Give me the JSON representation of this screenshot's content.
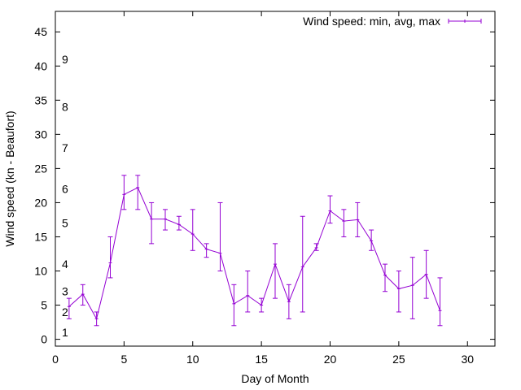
{
  "chart_data": {
    "type": "line",
    "xlabel": "Day of Month",
    "ylabel": "Wind speed (kn - Beaufort)",
    "xlim": [
      0,
      32
    ],
    "ylim": [
      -1,
      48
    ],
    "x_ticks": [
      0,
      5,
      10,
      15,
      20,
      25,
      30
    ],
    "y_ticks": [
      0,
      5,
      10,
      15,
      20,
      25,
      30,
      35,
      40,
      45
    ],
    "grid": false,
    "legend_position": "top-right",
    "colors": {
      "series": "#9400d3",
      "axis": "#000000"
    },
    "beaufort_labels": [
      {
        "label": "1",
        "knots": 1
      },
      {
        "label": "2",
        "knots": 4
      },
      {
        "label": "3",
        "knots": 7
      },
      {
        "label": "4",
        "knots": 11
      },
      {
        "label": "5",
        "knots": 17
      },
      {
        "label": "6",
        "knots": 22
      },
      {
        "label": "7",
        "knots": 28
      },
      {
        "label": "8",
        "knots": 34
      },
      {
        "label": "9",
        "knots": 41
      }
    ],
    "series": [
      {
        "name": "Wind speed: min, avg, max",
        "x": [
          1,
          2,
          3,
          4,
          5,
          6,
          7,
          8,
          9,
          10,
          11,
          12,
          13,
          14,
          15,
          16,
          17,
          18,
          19,
          20,
          21,
          22,
          23,
          24,
          25,
          26,
          27,
          28
        ],
        "avg": [
          4.8,
          6.6,
          3.0,
          11.2,
          21.2,
          22.2,
          17.6,
          17.6,
          16.8,
          15.4,
          13.2,
          12.6,
          5.2,
          6.4,
          5.0,
          11.0,
          5.5,
          10.6,
          13.4,
          18.8,
          17.3,
          17.5,
          14.4,
          9.4,
          7.4,
          7.9,
          9.5,
          4.2
        ],
        "min": [
          3.0,
          5.0,
          2.0,
          9.0,
          19.0,
          19.0,
          14.0,
          16.0,
          16.0,
          13.0,
          12.0,
          10.0,
          2.0,
          4.0,
          4.0,
          6.0,
          3.0,
          4.0,
          13.0,
          17.0,
          15.0,
          15.0,
          13.0,
          7.0,
          4.0,
          3.0,
          6.0,
          2.0
        ],
        "max": [
          6.0,
          8.0,
          4.0,
          15.0,
          24.0,
          24.0,
          20.0,
          19.0,
          18.0,
          19.0,
          14.0,
          20.0,
          8.0,
          10.0,
          6.0,
          14.0,
          8.0,
          18.0,
          14.0,
          21.0,
          19.0,
          20.0,
          16.0,
          11.0,
          10.0,
          12.0,
          13.0,
          9.0
        ]
      }
    ]
  }
}
